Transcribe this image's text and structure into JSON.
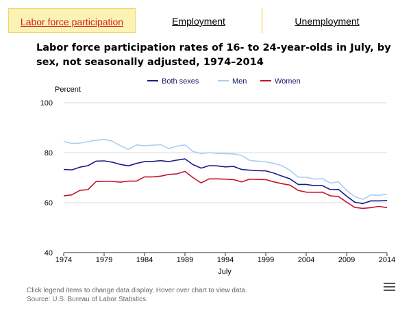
{
  "tabs": [
    {
      "label": "Labor force participation",
      "active": true
    },
    {
      "label": "Employment",
      "active": false
    },
    {
      "label": "Unemployment",
      "active": false
    }
  ],
  "chart_data": {
    "type": "line",
    "title": "Labor force participation rates of 16- to 24-year-olds in July, by sex, not seasonally adjusted, 1974–2014",
    "ylabel": "Percent",
    "xlabel": "July",
    "ylim": [
      40,
      100
    ],
    "xlim": [
      1974,
      2014
    ],
    "y_ticks": [
      40,
      60,
      80,
      100
    ],
    "x_ticks": [
      1974,
      1979,
      1984,
      1989,
      1994,
      1999,
      2004,
      2009,
      2014
    ],
    "legend_position": "top",
    "x": [
      1974,
      1975,
      1976,
      1977,
      1978,
      1979,
      1980,
      1981,
      1982,
      1983,
      1984,
      1985,
      1986,
      1987,
      1988,
      1989,
      1990,
      1991,
      1992,
      1993,
      1994,
      1995,
      1996,
      1997,
      1998,
      1999,
      2000,
      2001,
      2002,
      2003,
      2004,
      2005,
      2006,
      2007,
      2008,
      2009,
      2010,
      2011,
      2012,
      2013,
      2014
    ],
    "series": [
      {
        "name": "Both sexes",
        "color": "#1a1a8c",
        "values": [
          73.3,
          73.1,
          74.2,
          74.8,
          76.6,
          76.7,
          76.2,
          75.3,
          74.7,
          75.7,
          76.4,
          76.5,
          76.8,
          76.4,
          77,
          77.5,
          75.2,
          73.8,
          74.8,
          74.7,
          74.3,
          74.5,
          73.3,
          73,
          72.8,
          72.7,
          71.8,
          70.6,
          69.5,
          67.3,
          67.3,
          66.8,
          66.8,
          65.2,
          65.3,
          62.6,
          60.2,
          59.6,
          60.7,
          60.7,
          60.8
        ]
      },
      {
        "name": "Men",
        "color": "#a8cff0",
        "values": [
          84.5,
          83.7,
          83.8,
          84.4,
          85,
          85.3,
          84.6,
          82.8,
          81.3,
          83.1,
          82.7,
          83,
          83.2,
          81.6,
          82.6,
          83.1,
          80.5,
          79.6,
          80,
          79.7,
          79.6,
          79.5,
          78.9,
          76.9,
          76.6,
          76.3,
          75.7,
          74.8,
          72.9,
          70.2,
          70.2,
          69.4,
          69.6,
          67.8,
          68.3,
          64.9,
          62.4,
          61.3,
          63.1,
          62.9,
          63.4
        ]
      },
      {
        "name": "Women",
        "color": "#c8102e",
        "values": [
          62.7,
          63.1,
          64.9,
          65.2,
          68.4,
          68.5,
          68.5,
          68.2,
          68.6,
          68.6,
          70.3,
          70.3,
          70.6,
          71.3,
          71.5,
          72.5,
          70,
          67.9,
          69.5,
          69.5,
          69.4,
          69.2,
          68.3,
          69.4,
          69.3,
          69.2,
          68.3,
          67.6,
          67,
          64.9,
          64.2,
          64.1,
          64.2,
          62.7,
          62.4,
          60.2,
          58.1,
          57.7,
          58,
          58.5,
          58
        ]
      }
    ]
  },
  "footnote": {
    "line1": "Click legend items to change data display. Hover over chart to view data.",
    "line2": "Source: U.S. Bureau of Labor Statistics."
  },
  "icons": {
    "menu": "menu-icon"
  }
}
